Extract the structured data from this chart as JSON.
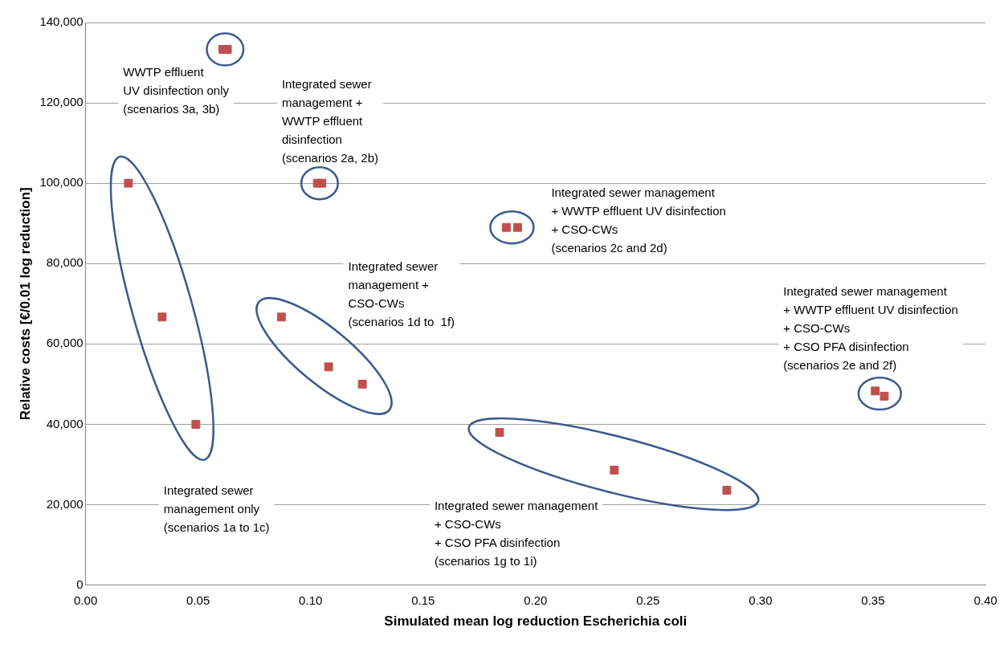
{
  "chart_data": {
    "type": "scatter",
    "xlabel": "Simulated mean log reduction Escherichia coli",
    "ylabel": "Relative costs [€/0.01 log reduction]",
    "xlim": [
      0,
      0.4
    ],
    "xticks": [
      {
        "value": 0,
        "label": "0.00"
      },
      {
        "value": 0.05,
        "label": "0.05"
      },
      {
        "value": 0.1,
        "label": "0.10"
      },
      {
        "value": 0.15,
        "label": "0.15"
      },
      {
        "value": 0.2,
        "label": "0.20"
      },
      {
        "value": 0.25,
        "label": "0.25"
      },
      {
        "value": 0.3,
        "label": "0.30"
      },
      {
        "value": 0.35,
        "label": "0.35"
      },
      {
        "value": 0.4,
        "label": "0.40"
      }
    ],
    "ylim": [
      0,
      140000
    ],
    "yticks": [
      {
        "value": 0,
        "label": "0"
      },
      {
        "value": 20000,
        "label": "20,000"
      },
      {
        "value": 40000,
        "label": "40,000"
      },
      {
        "value": 60000,
        "label": "60,000"
      },
      {
        "value": 80000,
        "label": "80,000"
      },
      {
        "value": 100000,
        "label": "100,000"
      },
      {
        "value": 120000,
        "label": "120,000"
      },
      {
        "value": 140000,
        "label": "140,000"
      }
    ],
    "grid": "y",
    "legend": false,
    "marker": "square",
    "series": [
      {
        "color": "#c0504d",
        "x": [
          0.019,
          0.034,
          0.049
        ],
        "values": [
          100000,
          66700,
          40000
        ]
      },
      {
        "color": "#c0504d",
        "x": [
          0.061,
          0.063
        ],
        "values": [
          133300,
          133300
        ]
      },
      {
        "color": "#c0504d",
        "x": [
          0.103,
          0.105
        ],
        "values": [
          100000,
          100000
        ]
      },
      {
        "color": "#c0504d",
        "x": [
          0.187,
          0.192
        ],
        "values": [
          89000,
          89000
        ]
      },
      {
        "color": "#c0504d",
        "x": [
          0.087,
          0.108,
          0.123
        ],
        "values": [
          66700,
          54300,
          50000
        ]
      },
      {
        "color": "#c0504d",
        "x": [
          0.184,
          0.235,
          0.285
        ],
        "values": [
          38000,
          28600,
          23600
        ]
      },
      {
        "color": "#c0504d",
        "x": [
          0.351,
          0.355
        ],
        "values": [
          48300,
          47000
        ]
      }
    ],
    "annotations": [
      "Integrated sewer\nmanagement only\n(scenarios 1a to 1c)",
      "WWTP effluent\nUV disinfection only\n(scenarios 3a, 3b)",
      "Integrated sewer\nmanagement +\nWWTP effluent\ndisinfection\n(scenarios 2a, 2b)",
      "Integrated sewer management\n+ WWTP effluent UV disinfection\n+ CSO-CWs\n(scenarios 2c and 2d)",
      "Integrated sewer\nmanagement +\nCSO-CWs\n(scenarios 1d to  1f)",
      "Integrated sewer management\n+ CSO-CWs\n+ CSO PFA disinfection\n(scenarios 1g to 1i)",
      "Integrated sewer management\n+ WWTP effluent UV disinfection\n+ CSO-CWs\n+ CSO PFA disinfection\n(scenarios 2e and 2f)"
    ]
  }
}
